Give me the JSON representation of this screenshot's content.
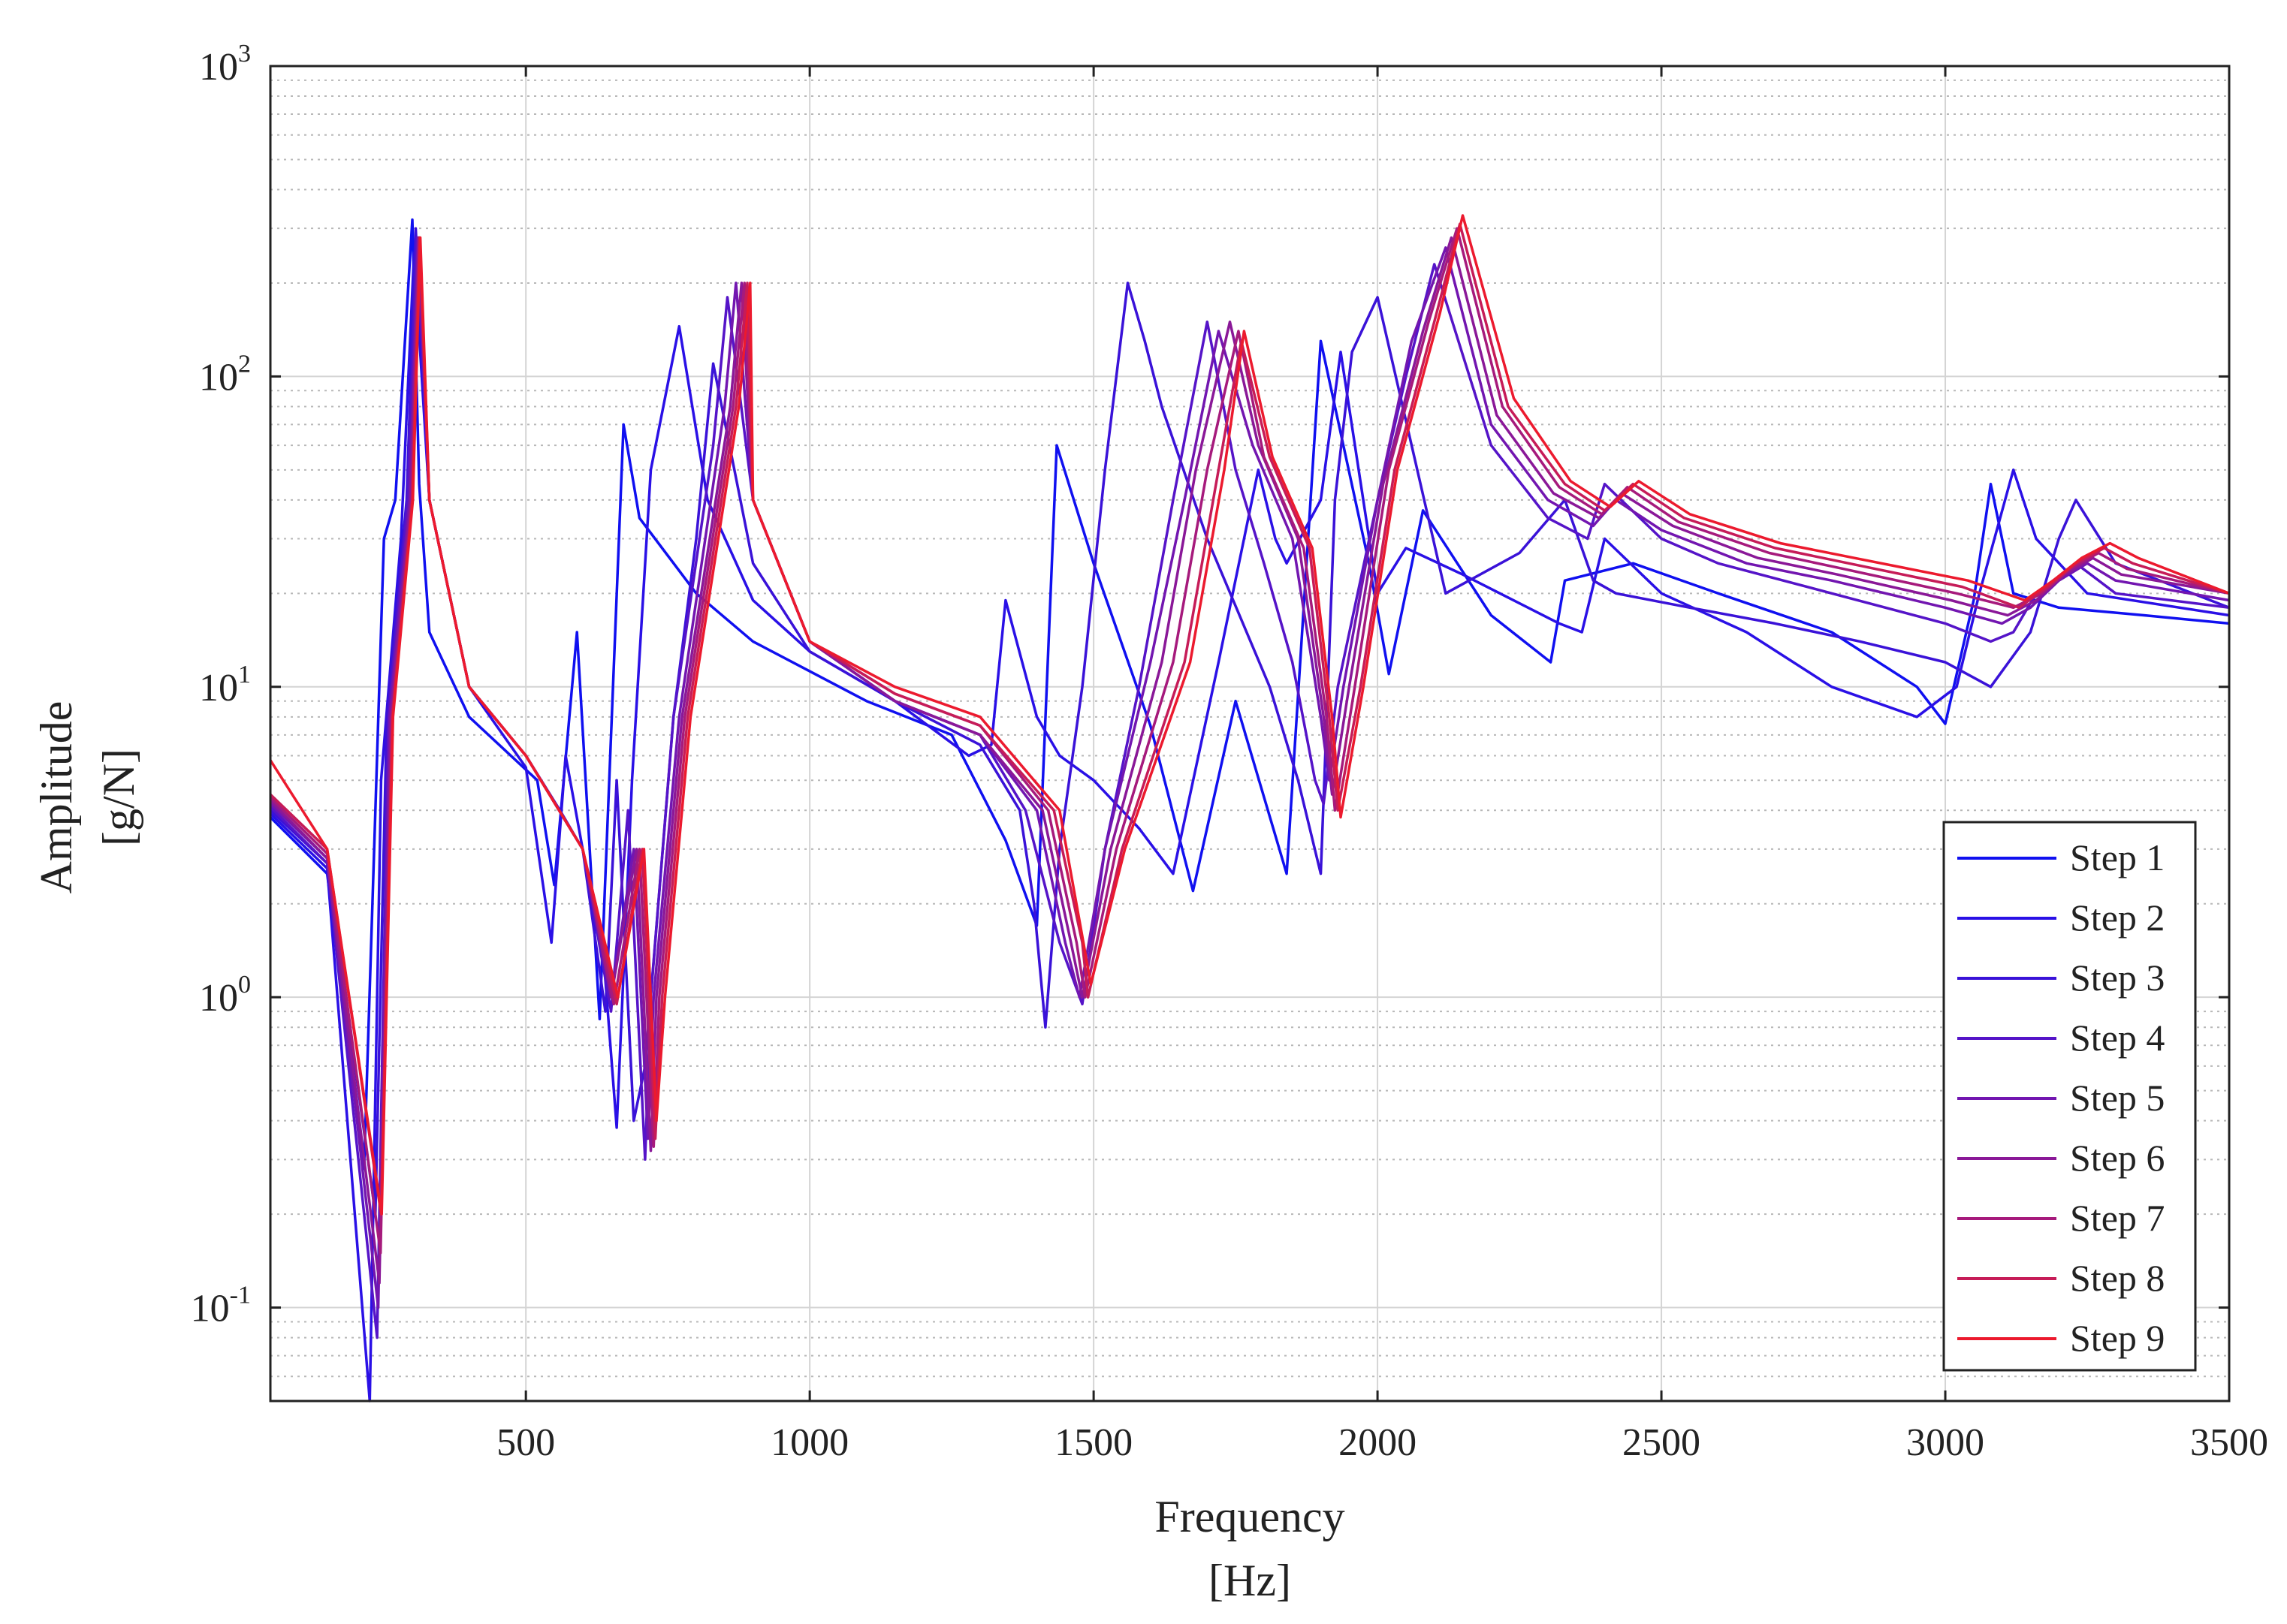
{
  "chart_data": {
    "type": "line",
    "title": "",
    "xlabel": "Frequency",
    "xunit": "[Hz]",
    "ylabel": "Amplitude",
    "yunit": "[g/N]",
    "xlim": [
      50,
      3500
    ],
    "ylim": [
      0.05,
      1000
    ],
    "yscale": "log",
    "grid": true,
    "minor_grid": true,
    "legend_position": "bottom-right",
    "x_ticks": [
      {
        "value": 500,
        "label": "500"
      },
      {
        "value": 1000,
        "label": "1000"
      },
      {
        "value": 1500,
        "label": "1500"
      },
      {
        "value": 2000,
        "label": "2000"
      },
      {
        "value": 2500,
        "label": "2500"
      },
      {
        "value": 3000,
        "label": "3000"
      },
      {
        "value": 3500,
        "label": "3500"
      }
    ],
    "y_ticks": [
      {
        "value": 0.1,
        "base": "10",
        "exp": "-1"
      },
      {
        "value": 1,
        "base": "10",
        "exp": "0"
      },
      {
        "value": 10,
        "base": "10",
        "exp": "1"
      },
      {
        "value": 100,
        "base": "10",
        "exp": "2"
      },
      {
        "value": 1000,
        "base": "10",
        "exp": "3"
      }
    ],
    "series": [
      {
        "name": "Step 1",
        "color": "#1010f0",
        "x": [
          50,
          150,
          215,
          235,
          250,
          270,
          300,
          312,
          330,
          400,
          520,
          550,
          590,
          630,
          672,
          700,
          800,
          900,
          1100,
          1250,
          1345,
          1400,
          1435,
          1500,
          1600,
          1675,
          1750,
          1840,
          1900,
          1985,
          2020,
          2080,
          2200,
          2305,
          2330,
          2450,
          2600,
          2800,
          2950,
          3000,
          3050,
          3080,
          3120,
          3200,
          3350,
          3500
        ],
        "y": [
          3.8,
          2.5,
          0.28,
          4,
          30,
          40,
          320,
          45,
          15,
          8,
          5,
          2.3,
          15,
          0.85,
          70,
          35,
          20,
          14,
          9,
          7,
          3.2,
          1.7,
          60,
          25,
          7.5,
          2.2,
          9,
          2.5,
          130,
          25,
          11,
          37,
          17,
          12,
          22,
          25,
          20,
          15,
          10,
          7.6,
          19,
          45,
          20,
          18,
          17,
          16
        ]
      },
      {
        "name": "Step 2",
        "color": "#2a10e6",
        "x": [
          50,
          150,
          225,
          245,
          280,
          303,
          330,
          400,
          500,
          545,
          570,
          600,
          635,
          660,
          687,
          720,
          770,
          820,
          900,
          1000,
          1150,
          1280,
          1320,
          1345,
          1400,
          1440,
          1500,
          1580,
          1640,
          1720,
          1790,
          1820,
          1840,
          1900,
          1935,
          2000,
          2050,
          2150,
          2320,
          2360,
          2400,
          2500,
          2650,
          2800,
          2950,
          3020,
          3060,
          3120,
          3160,
          3250,
          3500
        ],
        "y": [
          3.9,
          2.6,
          0.05,
          5,
          30,
          250,
          40,
          10,
          5.5,
          1.5,
          6,
          3,
          1.5,
          0.38,
          5,
          50,
          145,
          40,
          19,
          13,
          9,
          6,
          6.5,
          19,
          8,
          6,
          5,
          3.5,
          2.5,
          12,
          50,
          30,
          25,
          40,
          120,
          20,
          28,
          23,
          16,
          15,
          30,
          20,
          15,
          10,
          8,
          10,
          20,
          50,
          30,
          20,
          17
        ]
      },
      {
        "name": "Step 3",
        "color": "#3a12d8",
        "x": [
          50,
          150,
          235,
          255,
          290,
          306,
          330,
          400,
          500,
          560,
          600,
          640,
          660,
          690,
          710,
          760,
          800,
          830,
          900,
          1000,
          1150,
          1300,
          1370,
          1395,
          1415,
          1440,
          1480,
          1520,
          1560,
          1590,
          1620,
          1700,
          1810,
          1860,
          1900,
          1925,
          1955,
          2000,
          2070,
          2120,
          2250,
          2330,
          2380,
          2420,
          2550,
          2700,
          2850,
          3000,
          3080,
          3150,
          3200,
          3230,
          3300,
          3500
        ],
        "y": [
          4.0,
          2.7,
          0.2,
          8,
          40,
          300,
          40,
          10,
          6,
          4,
          3,
          0.9,
          5,
          0.4,
          0.6,
          8,
          30,
          110,
          25,
          13,
          9,
          6.5,
          4,
          2,
          0.8,
          3,
          10,
          50,
          200,
          130,
          80,
          30,
          10,
          5,
          2.5,
          40,
          120,
          180,
          50,
          20,
          27,
          40,
          22,
          20,
          18,
          16,
          14,
          12,
          10,
          15,
          30,
          40,
          25,
          18
        ]
      },
      {
        "name": "Step 4",
        "color": "#5514c8",
        "x": [
          50,
          150,
          238,
          258,
          292,
          308,
          330,
          400,
          500,
          600,
          650,
          680,
          710,
          720,
          760,
          830,
          855,
          900,
          1000,
          1150,
          1300,
          1380,
          1440,
          1480,
          1520,
          1580,
          1640,
          1700,
          1750,
          1800,
          1850,
          1890,
          1905,
          1930,
          2000,
          2050,
          2100,
          2200,
          2300,
          2370,
          2400,
          2500,
          2600,
          2800,
          3000,
          3080,
          3120,
          3160,
          3230,
          3300,
          3500
        ],
        "y": [
          4.1,
          2.7,
          0.08,
          8,
          40,
          280,
          40,
          10,
          6,
          3,
          0.9,
          4,
          0.3,
          1,
          8,
          60,
          180,
          40,
          14,
          9,
          7,
          4,
          1.5,
          0.95,
          3,
          10,
          40,
          150,
          50,
          25,
          12,
          5,
          4.2,
          10,
          40,
          100,
          230,
          60,
          35,
          30,
          45,
          30,
          25,
          20,
          16,
          14,
          15,
          20,
          25,
          20,
          18
        ]
      },
      {
        "name": "Step 5",
        "color": "#7216b0",
        "x": [
          50,
          150,
          240,
          260,
          295,
          310,
          330,
          400,
          500,
          600,
          650,
          690,
          715,
          725,
          770,
          850,
          870,
          900,
          1000,
          1150,
          1300,
          1400,
          1450,
          1475,
          1520,
          1600,
          1660,
          1720,
          1780,
          1850,
          1900,
          1915,
          1940,
          2000,
          2060,
          2120,
          2200,
          2300,
          2380,
          2420,
          2500,
          2650,
          2800,
          3000,
          3100,
          3150,
          3200,
          3250,
          3300,
          3500
        ],
        "y": [
          4.2,
          2.8,
          0.1,
          8,
          40,
          280,
          40,
          10,
          6,
          3,
          1,
          3,
          0.35,
          1,
          8,
          80,
          200,
          40,
          14,
          9,
          7,
          4,
          1.5,
          1.0,
          3,
          12,
          40,
          140,
          60,
          30,
          8,
          5,
          10,
          40,
          130,
          260,
          70,
          40,
          33,
          40,
          32,
          25,
          22,
          18,
          16,
          18,
          22,
          25,
          22,
          19
        ]
      },
      {
        "name": "Step 6",
        "color": "#8a1898",
        "x": [
          50,
          150,
          242,
          262,
          297,
          311,
          330,
          400,
          500,
          600,
          650,
          695,
          720,
          730,
          775,
          860,
          880,
          900,
          1000,
          1150,
          1300,
          1410,
          1460,
          1480,
          1530,
          1620,
          1680,
          1740,
          1790,
          1860,
          1905,
          1920,
          1950,
          2010,
          2080,
          2130,
          2210,
          2310,
          2390,
          2430,
          2520,
          2670,
          2810,
          3010,
          3110,
          3160,
          3210,
          3260,
          3310,
          3500
        ],
        "y": [
          4.3,
          2.8,
          0.12,
          8,
          40,
          280,
          40,
          10,
          6,
          3,
          1,
          3,
          0.32,
          1,
          8,
          80,
          200,
          40,
          14,
          9,
          7,
          4,
          1.5,
          1.0,
          3,
          12,
          50,
          150,
          60,
          30,
          8,
          4.5,
          10,
          45,
          140,
          280,
          75,
          42,
          35,
          42,
          33,
          26,
          23,
          19,
          17,
          19,
          23,
          26,
          23,
          20
        ]
      },
      {
        "name": "Step 7",
        "color": "#a61a7c",
        "x": [
          50,
          150,
          244,
          264,
          299,
          312,
          330,
          400,
          500,
          600,
          655,
          700,
          725,
          735,
          780,
          865,
          885,
          900,
          1000,
          1150,
          1300,
          1420,
          1470,
          1485,
          1540,
          1640,
          1700,
          1755,
          1800,
          1870,
          1910,
          1925,
          1960,
          2020,
          2090,
          2140,
          2220,
          2320,
          2395,
          2440,
          2530,
          2690,
          2820,
          3020,
          3120,
          3170,
          3220,
          3270,
          3320,
          3500
        ],
        "y": [
          4.4,
          2.9,
          0.15,
          8,
          40,
          280,
          40,
          10,
          6,
          3,
          0.95,
          3,
          0.33,
          1,
          8,
          80,
          200,
          40,
          14,
          9.5,
          7.5,
          4,
          1.5,
          1.0,
          3,
          12,
          50,
          140,
          55,
          28,
          8,
          4.0,
          10,
          50,
          150,
          300,
          80,
          44,
          36,
          44,
          34,
          27,
          24,
          20,
          18,
          20,
          24,
          27,
          24,
          20
        ]
      },
      {
        "name": "Step 8",
        "color": "#c61c58",
        "x": [
          50,
          150,
          245,
          265,
          300,
          313,
          330,
          400,
          500,
          600,
          660,
          705,
          728,
          740,
          785,
          870,
          890,
          900,
          1000,
          1150,
          1300,
          1430,
          1480,
          1490,
          1550,
          1660,
          1720,
          1760,
          1810,
          1880,
          1915,
          1930,
          1970,
          2030,
          2100,
          2145,
          2230,
          2330,
          2400,
          2450,
          2540,
          2700,
          2830,
          3030,
          3130,
          3180,
          3230,
          3280,
          3330,
          3500
        ],
        "y": [
          4.5,
          3.0,
          0.2,
          8,
          40,
          280,
          40,
          10,
          6,
          3,
          0.95,
          3,
          0.35,
          1,
          8,
          80,
          200,
          40,
          14,
          9.5,
          7.5,
          4,
          1.5,
          1.0,
          3,
          12,
          50,
          130,
          55,
          28,
          8,
          4.0,
          10,
          50,
          150,
          310,
          80,
          45,
          37,
          45,
          35,
          28,
          25,
          21,
          18,
          21,
          25,
          28,
          25,
          20
        ]
      },
      {
        "name": "Step 9",
        "color": "#ec1a2e",
        "x": [
          50,
          150,
          246,
          266,
          301,
          314,
          330,
          400,
          500,
          600,
          662,
          708,
          730,
          745,
          790,
          875,
          895,
          900,
          1000,
          1150,
          1300,
          1440,
          1482,
          1495,
          1555,
          1670,
          1730,
          1765,
          1815,
          1885,
          1920,
          1935,
          1975,
          2035,
          2110,
          2150,
          2240,
          2340,
          2410,
          2460,
          2550,
          2710,
          2840,
          3040,
          3140,
          3190,
          3240,
          3290,
          3340,
          3500
        ],
        "y": [
          5.8,
          3.0,
          0.2,
          8,
          40,
          280,
          40,
          10,
          6,
          3,
          1,
          3,
          0.4,
          1,
          8,
          80,
          200,
          40,
          14,
          10,
          8,
          4,
          1.5,
          1.1,
          3,
          12,
          50,
          140,
          55,
          28,
          8,
          3.8,
          10,
          50,
          160,
          330,
          85,
          46,
          38,
          46,
          36,
          29,
          26,
          22,
          19,
          22,
          26,
          29,
          26,
          20
        ]
      }
    ]
  }
}
